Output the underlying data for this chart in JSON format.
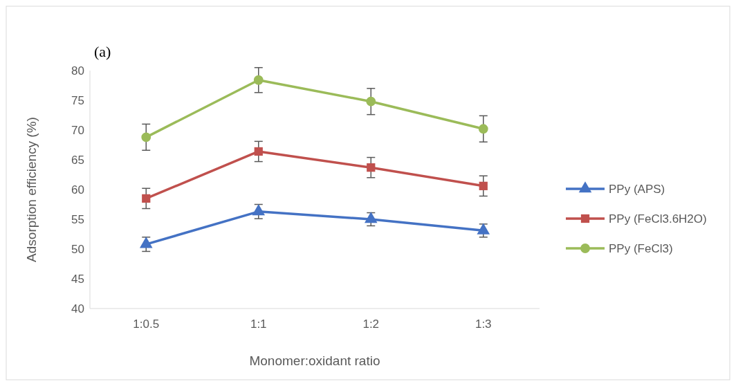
{
  "chart_data": {
    "type": "line",
    "xlabel": "Monomer:oxidant ratio",
    "ylabel": "Adsorption efficiency (%)",
    "annotations": [
      "(a)"
    ],
    "categories": [
      "1:0.5",
      "1:1",
      "1:2",
      "1:3"
    ],
    "ylim": [
      40,
      80
    ],
    "yticks": [
      40,
      45,
      50,
      55,
      60,
      65,
      70,
      75,
      80
    ],
    "grid": false,
    "legend": "right",
    "series": [
      {
        "name": "PPy (APS)",
        "color": "#4472c4",
        "marker": "triangle",
        "values": [
          50.8,
          56.3,
          55.0,
          53.1
        ],
        "errors": [
          1.2,
          1.2,
          1.1,
          1.1
        ]
      },
      {
        "name": "PPy (FeCl3.6H2O)",
        "color": "#c0504d",
        "marker": "square",
        "values": [
          58.5,
          66.4,
          63.7,
          60.6
        ],
        "errors": [
          1.7,
          1.7,
          1.7,
          1.7
        ]
      },
      {
        "name": "PPy (FeCl3)",
        "color": "#9bbb59",
        "marker": "circle",
        "values": [
          68.8,
          78.4,
          74.8,
          70.2
        ],
        "errors": [
          2.2,
          2.1,
          2.2,
          2.2
        ]
      }
    ]
  }
}
